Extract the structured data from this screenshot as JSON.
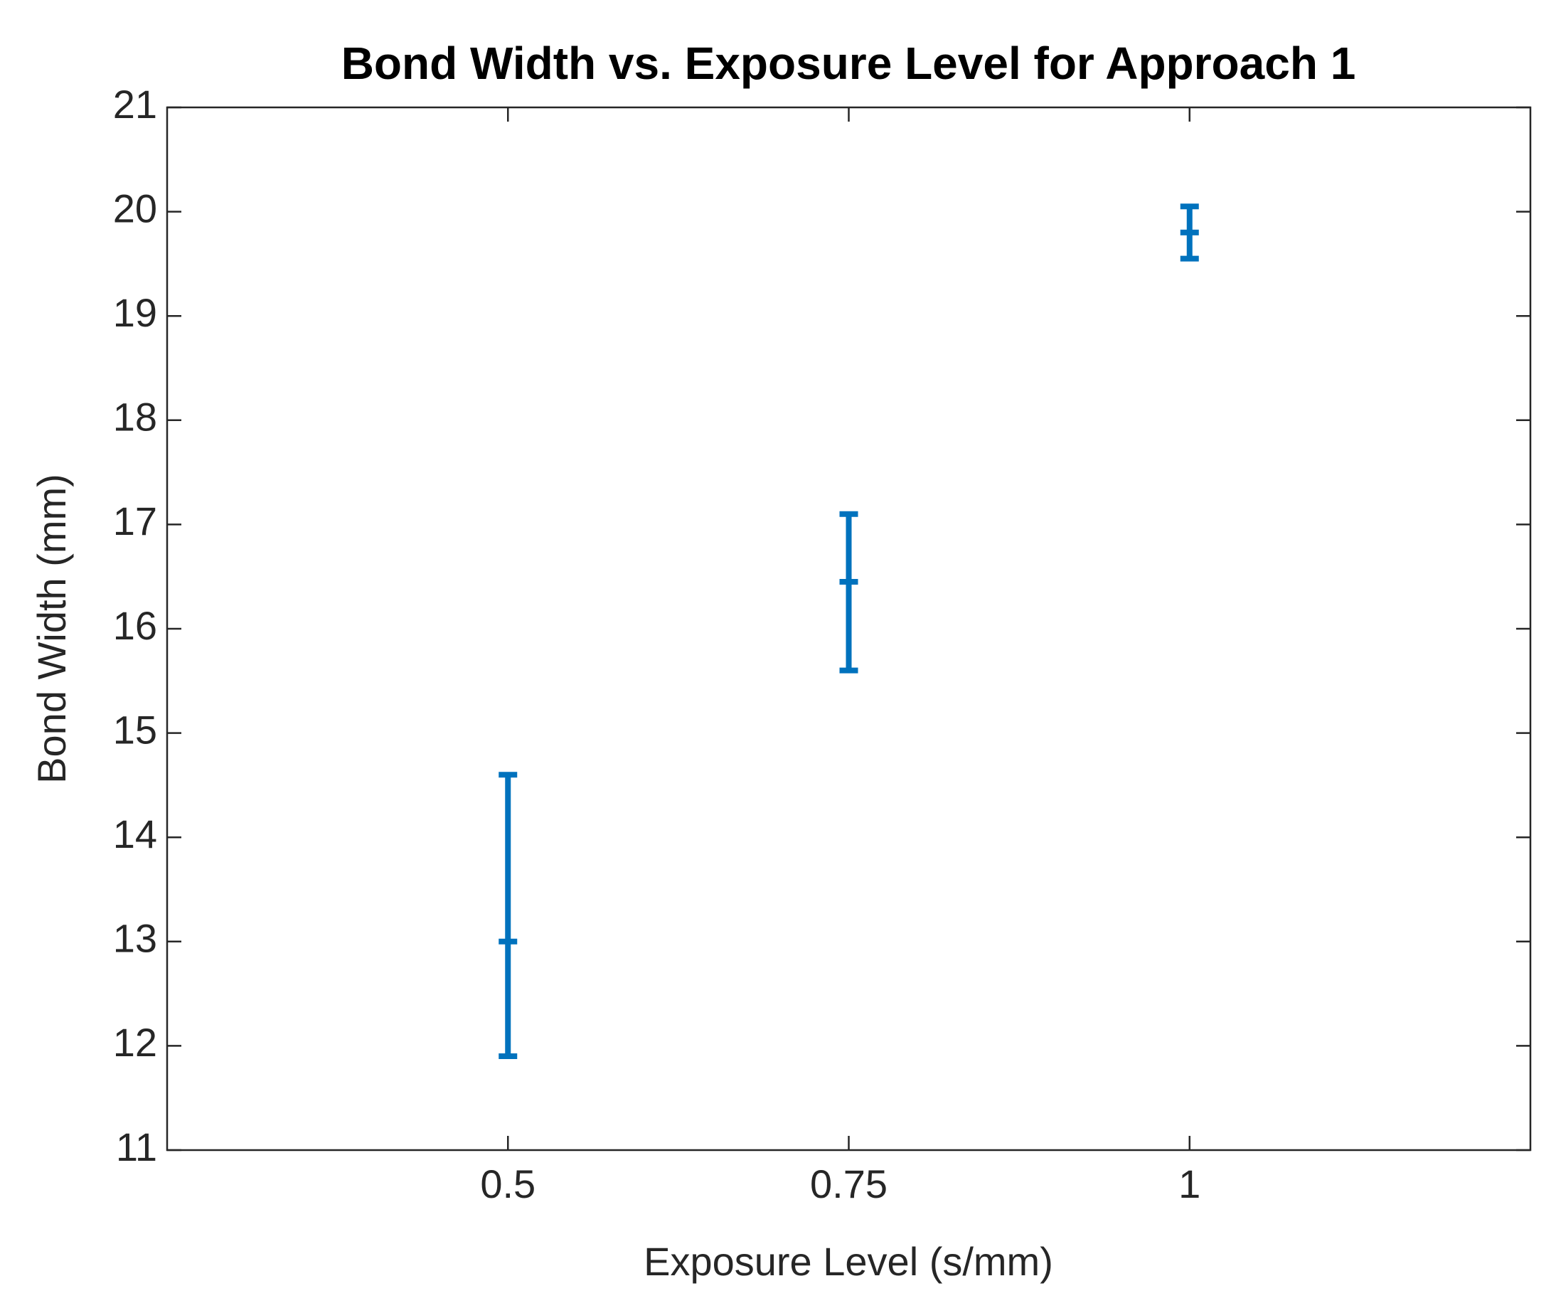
{
  "chart_data": {
    "type": "errorbar",
    "title": "Bond Width vs. Exposure Level for Approach 1",
    "x_label": "Exposure Level (s/mm)",
    "y_label": "Bond Width (mm)",
    "x": [
      0.5,
      0.75,
      1
    ],
    "series": [
      {
        "color": "#0072bd",
        "values": [
          13.0,
          16.45,
          19.8
        ],
        "lower": [
          11.9,
          15.6,
          19.55
        ],
        "upper": [
          14.6,
          17.1,
          20.05
        ]
      }
    ],
    "xlim": [
      0.25,
      1.25
    ],
    "xticks": [
      0.5,
      0.75,
      1
    ],
    "ylim": [
      11,
      21
    ],
    "yticks": [
      11,
      12,
      13,
      14,
      15,
      16,
      17,
      18,
      19,
      20,
      21
    ],
    "grid": false
  }
}
